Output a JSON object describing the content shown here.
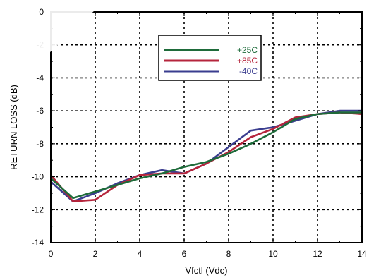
{
  "chart_data": {
    "type": "line",
    "title": "",
    "xlabel": "Vfctl (Vdc)",
    "ylabel": "RETURN LOSS (dB)",
    "xlim": [
      0,
      14
    ],
    "ylim": [
      -14,
      0
    ],
    "x_ticks": [
      0,
      2,
      4,
      6,
      8,
      10,
      12,
      14
    ],
    "y_ticks": [
      0,
      -2,
      -4,
      -6,
      -8,
      -10,
      -12,
      -14
    ],
    "grid": true,
    "legend_position": "top-center",
    "series": [
      {
        "name": "+25C",
        "color": "#1e6b3a",
        "x": [
          0,
          1,
          2,
          3,
          4,
          5,
          6,
          7,
          8,
          9,
          10,
          11,
          12,
          13,
          14
        ],
        "y": [
          -10.1,
          -11.3,
          -10.9,
          -10.5,
          -10.1,
          -9.8,
          -9.4,
          -9.1,
          -8.6,
          -8.0,
          -7.3,
          -6.5,
          -6.2,
          -6.1,
          -6.1
        ]
      },
      {
        "name": "+85C",
        "color": "#b5253c",
        "x": [
          0,
          1,
          2,
          3,
          4,
          5,
          6,
          7,
          8,
          9,
          10,
          11,
          12,
          13,
          14
        ],
        "y": [
          -9.9,
          -11.5,
          -11.4,
          -10.5,
          -9.9,
          -9.8,
          -9.8,
          -9.2,
          -8.5,
          -7.6,
          -7.1,
          -6.4,
          -6.2,
          -6.1,
          -6.2
        ]
      },
      {
        "name": "-40C",
        "color": "#3a3d8f",
        "x": [
          0,
          1,
          2,
          3,
          4,
          5,
          6,
          7,
          8,
          9,
          10,
          11,
          12,
          13,
          14
        ],
        "y": [
          -10.3,
          -11.5,
          -11.0,
          -10.4,
          -9.9,
          -9.6,
          -9.8,
          -9.2,
          -8.2,
          -7.2,
          -7.0,
          -6.6,
          -6.2,
          -6.0,
          -6.0
        ]
      }
    ]
  }
}
